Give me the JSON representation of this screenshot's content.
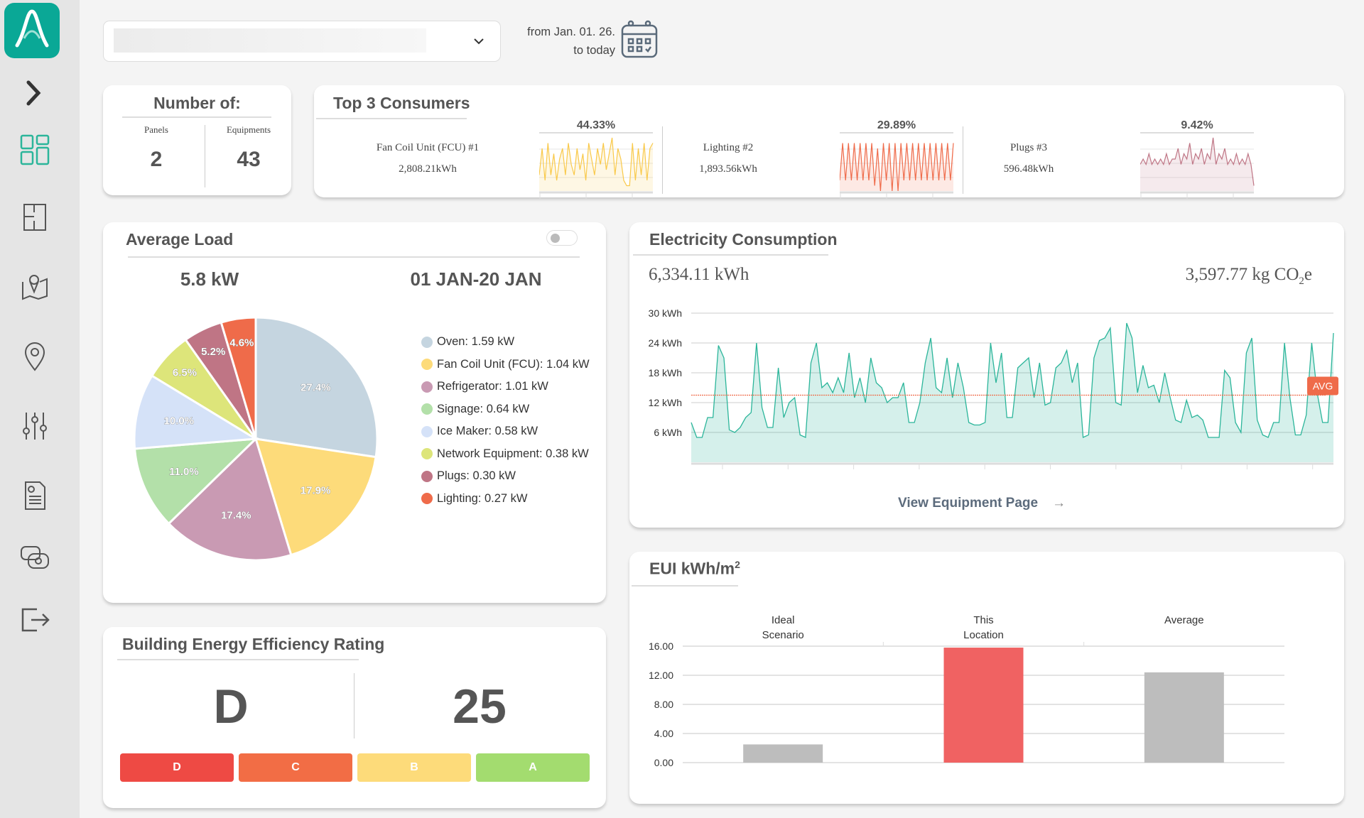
{
  "filter": {
    "selected": "",
    "date_from": "from Jan. 01. 26.",
    "date_to": "to today"
  },
  "count_card": {
    "title": "Number of:",
    "panels_label": "Panels",
    "panels": "2",
    "equipments_label": "Equipments",
    "equipments": "43"
  },
  "top3": {
    "title": "Top 3 Consumers",
    "items": [
      {
        "name": "Fan Coil Unit (FCU) #1",
        "energy": "2,808.21kWh",
        "share": "44.33%",
        "color": "#f9c94a",
        "spark": [
          3,
          8,
          2,
          9,
          3,
          7,
          2,
          6,
          8,
          3,
          9,
          5,
          3,
          8,
          4,
          7,
          2,
          9,
          6,
          3,
          8,
          5,
          9,
          4,
          7,
          10,
          3,
          8,
          6,
          2,
          1,
          1,
          9,
          2,
          8,
          3,
          9,
          2,
          8,
          9
        ]
      },
      {
        "name": "Lighting #2",
        "energy": "1,893.56kWh",
        "share": "29.89%",
        "color": "#ef6b4a",
        "spark": [
          2,
          9,
          2,
          9,
          2,
          9,
          2,
          9,
          2,
          9,
          2,
          9,
          1,
          8,
          0,
          9,
          2,
          9,
          0,
          9,
          0,
          9,
          2,
          9,
          2,
          9,
          2,
          9,
          2,
          9,
          2,
          9,
          2,
          9,
          2,
          9,
          2,
          9,
          2,
          9
        ]
      },
      {
        "name": "Plugs #3",
        "energy": "596.48kWh",
        "share": "9.42%",
        "color": "#bf7585",
        "spark": [
          5,
          6,
          5,
          7,
          5,
          6,
          5,
          6,
          5,
          7,
          5,
          6,
          6,
          8,
          5,
          7,
          6,
          9,
          5,
          7,
          6,
          8,
          5,
          7,
          6,
          10,
          5,
          7,
          6,
          8,
          5,
          6,
          5,
          7,
          5,
          6,
          5,
          7,
          5,
          1
        ]
      }
    ]
  },
  "average_load": {
    "title": "Average Load",
    "total": "5.8 kW",
    "period": "01 JAN-20 JAN",
    "toggle_on": false,
    "chart_data": {
      "type": "pie",
      "slices": [
        {
          "name": "Oven",
          "value": 1.59,
          "percent": 27.4,
          "label": "27.4%",
          "legend": "Oven: 1.59 kW",
          "color": "#c5d5e0"
        },
        {
          "name": "Fan Coil Unit (FCU)",
          "value": 1.04,
          "percent": 17.9,
          "label": "17.9%",
          "legend": "Fan Coil Unit (FCU): 1.04 kW",
          "color": "#fddb7a"
        },
        {
          "name": "Refrigerator",
          "value": 1.01,
          "percent": 17.4,
          "label": "17.4%",
          "legend": "Refrigerator: 1.01 kW",
          "color": "#c99ab3"
        },
        {
          "name": "Signage",
          "value": 0.64,
          "percent": 11.0,
          "label": "11.0%",
          "legend": "Signage: 0.64 kW",
          "color": "#b3e0a9"
        },
        {
          "name": "Ice Maker",
          "value": 0.58,
          "percent": 10.0,
          "label": "10.0%",
          "legend": "Ice Maker: 0.58 kW",
          "color": "#d5e2f8"
        },
        {
          "name": "Network Equipment",
          "value": 0.38,
          "percent": 6.5,
          "label": "6.5%",
          "legend": "Network Equipment: 0.38 kW",
          "color": "#dde57a"
        },
        {
          "name": "Plugs",
          "value": 0.3,
          "percent": 5.2,
          "label": "5.2%",
          "legend": "Plugs: 0.30 kW",
          "color": "#bf7585"
        },
        {
          "name": "Lighting",
          "value": 0.27,
          "percent": 4.6,
          "label": "4.6%",
          "legend": "Lighting: 0.27 kW",
          "color": "#ef6b4a"
        }
      ]
    }
  },
  "electricity": {
    "title": "Electricity Consumption",
    "total": "6,334.11 kWh",
    "co2": "3,597.77 kg CO",
    "co2_sub": "2",
    "co2_suffix": "e",
    "link": "View Equipment Page",
    "chart_data": {
      "type": "area",
      "color": "#2bb59a",
      "ylim": [
        0,
        30
      ],
      "yticks": [
        "30 kWh",
        "24 kWh",
        "18 kWh",
        "12 kWh",
        "6 kWh"
      ],
      "ytick_values": [
        30,
        24,
        18,
        12,
        6
      ],
      "avg": 13.5,
      "avg_label": "AVG",
      "values": [
        8,
        5,
        5,
        9,
        9,
        23.5,
        21,
        6.5,
        6,
        7,
        9,
        10,
        24,
        11,
        7,
        7,
        19,
        9,
        12,
        13,
        5.5,
        5,
        20,
        24,
        15,
        16,
        14,
        17,
        14,
        22,
        13,
        17,
        12,
        21,
        16,
        15,
        12,
        13,
        13,
        16,
        8,
        8,
        12,
        20,
        25,
        15,
        14,
        21,
        13,
        20,
        15,
        8,
        7.5,
        7.5,
        8,
        24,
        16,
        22,
        9,
        9,
        19,
        20,
        21,
        13,
        20,
        11.5,
        12,
        19,
        20,
        22.5,
        16,
        20,
        5,
        5.5,
        21,
        24.5,
        25,
        27,
        12,
        11.5,
        28,
        25,
        14,
        19.5,
        15,
        15.5,
        12,
        18,
        13,
        8.5,
        8,
        12.5,
        9,
        9.5,
        8.5,
        5,
        5,
        5,
        18.5,
        17,
        8,
        6,
        22,
        25,
        8.5,
        5.5,
        5,
        8,
        8,
        24,
        13,
        5.5,
        5.5,
        9.5,
        24,
        14,
        8,
        8,
        26
      ]
    }
  },
  "rating": {
    "title": "Building Energy Efficiency Rating",
    "grade": "D",
    "score": "25",
    "scale": [
      {
        "label": "D",
        "color": "#ee4a44"
      },
      {
        "label": "C",
        "color": "#f26d45"
      },
      {
        "label": "B",
        "color": "#fddb7a"
      },
      {
        "label": "A",
        "color": "#a3dc6f"
      }
    ]
  },
  "eui": {
    "title": "EUI kWh/m",
    "title_sup": "2",
    "chart_data": {
      "type": "bar",
      "categories": [
        [
          "Ideal",
          "Scenario"
        ],
        [
          "This",
          "Location"
        ],
        [
          "Average",
          ""
        ]
      ],
      "values": [
        2.5,
        15.8,
        12.4
      ],
      "colors": [
        "#bdbdbd",
        "#f06262",
        "#bdbdbd"
      ],
      "ylim": [
        0,
        16
      ],
      "yticks": [
        "16.00",
        "12.00",
        "8.00",
        "4.00",
        "0.00"
      ],
      "ytick_values": [
        16,
        12,
        8,
        4,
        0
      ]
    }
  }
}
